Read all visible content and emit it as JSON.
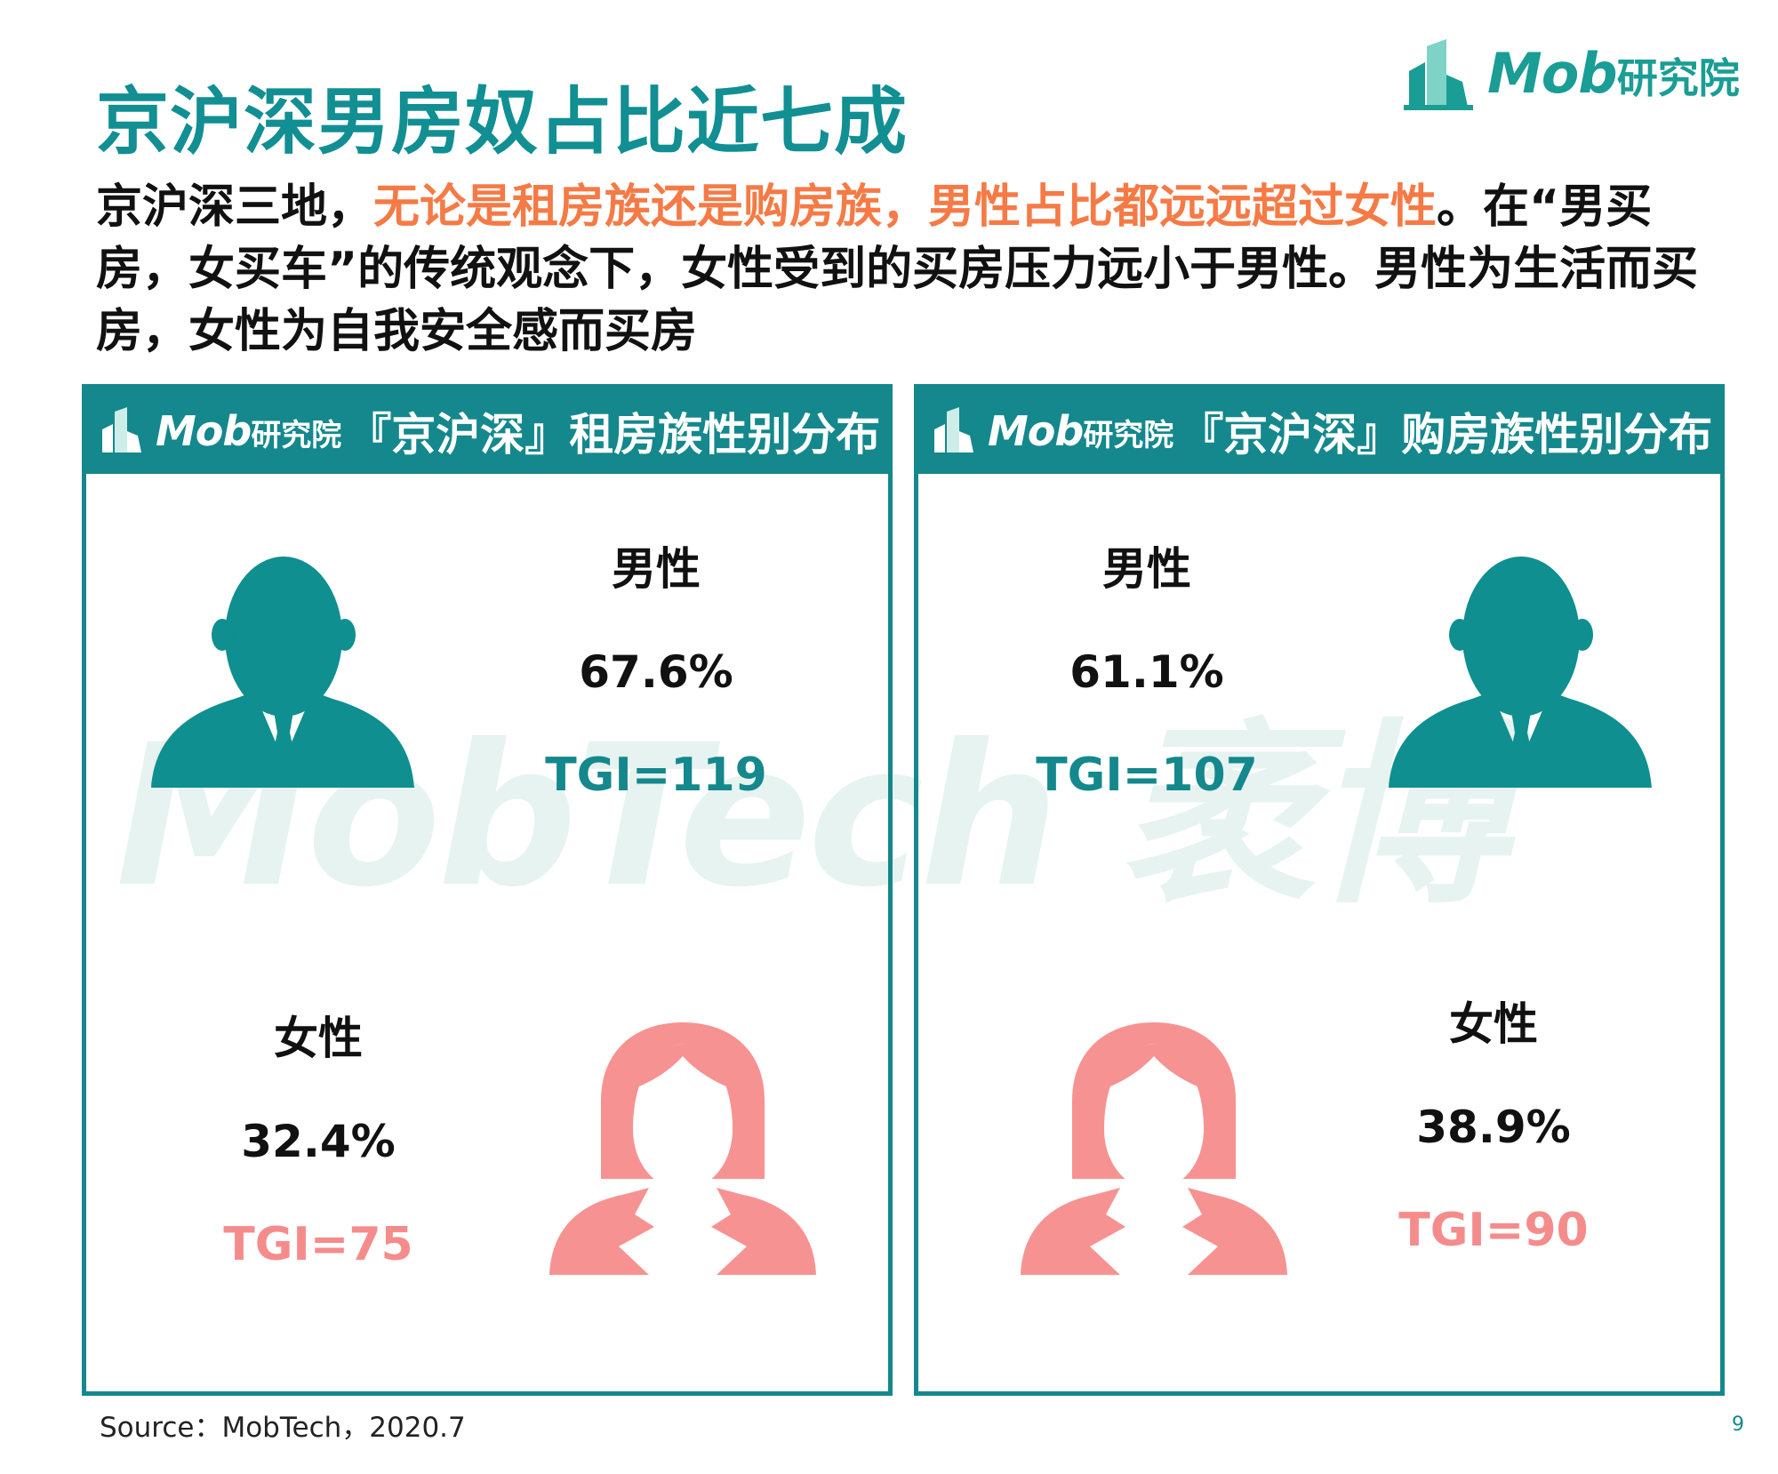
{
  "title": "京沪深男房奴占比近七成",
  "logo": {
    "brand": "Mob",
    "brand_cn": "研究院"
  },
  "lead": {
    "part1": "京沪深三地，",
    "highlight": "无论是租房族还是购房族，男性占比都远远超过女性",
    "part2": "。在“男买房，女买车”的传统观念下，女性受到的买房压力远小于男性。男性为生活而买房，女性为自我安全感而买房"
  },
  "watermark": "MobTech 袤博",
  "panels": [
    {
      "title": "『京沪深』租房族性别分布",
      "male": {
        "label": "男性",
        "percent": "67.6%",
        "tgi": "TGI=119"
      },
      "female": {
        "label": "女性",
        "percent": "32.4%",
        "tgi": "TGI=75"
      }
    },
    {
      "title": "『京沪深』购房族性别分布",
      "male": {
        "label": "男性",
        "percent": "61.1%",
        "tgi": "TGI=107"
      },
      "female": {
        "label": "女性",
        "percent": "38.9%",
        "tgi": "TGI=90"
      }
    }
  ],
  "source": "Source：MobTech，2020.7",
  "page_number": "9",
  "colors": {
    "teal": "#14888c",
    "title_teal": "#118f93",
    "orange": "#f57a45",
    "pink": "#f58c8c"
  }
}
